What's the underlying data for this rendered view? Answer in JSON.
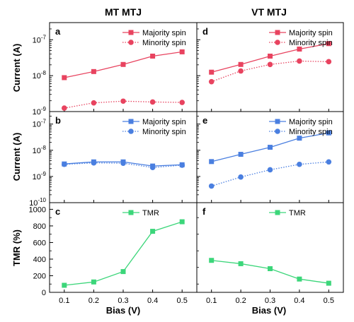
{
  "colors": {
    "majority_red": "#e8435f",
    "majority_blue": "#4a7fe0",
    "tmr_green": "#3cd67a"
  },
  "columns": [
    "MT MTJ",
    "VT MTJ"
  ],
  "chart_data": [
    {
      "id": "a",
      "type": "line",
      "column_title": "MT MTJ",
      "panel_label": "a",
      "ylabel": "Current (A)",
      "xlabel": "",
      "yscale": "log",
      "ylim": [
        1e-09,
        3e-07
      ],
      "yticks": [
        {
          "value": 1e-09,
          "mantissa": "10",
          "exp": "-9"
        },
        {
          "value": 1e-08,
          "mantissa": "10",
          "exp": "-8"
        },
        {
          "value": 1e-07,
          "mantissa": "10",
          "exp": "-7"
        }
      ],
      "x": [
        0.1,
        0.2,
        0.3,
        0.4,
        0.5
      ],
      "legend_position": "top-right",
      "series": [
        {
          "name": "Majority spin",
          "color": "#e8435f",
          "marker": "square",
          "line": "solid",
          "values": [
            8.8e-09,
            1.3e-08,
            2.05e-08,
            3.5e-08,
            4.6e-08
          ]
        },
        {
          "name": "Minority spin",
          "color": "#e8435f",
          "marker": "circle",
          "line": "dotted",
          "values": [
            1.25e-09,
            1.75e-09,
            1.95e-09,
            1.85e-09,
            1.8e-09
          ]
        }
      ]
    },
    {
      "id": "d",
      "type": "line",
      "column_title": "VT MTJ",
      "panel_label": "d",
      "ylabel": "",
      "xlabel": "",
      "yscale": "log",
      "ylim": [
        1e-09,
        3e-07
      ],
      "yticks": [],
      "x": [
        0.1,
        0.2,
        0.3,
        0.4,
        0.5
      ],
      "legend_position": "top-right",
      "series": [
        {
          "name": "Majority spin",
          "color": "#e8435f",
          "marker": "square",
          "line": "solid",
          "values": [
            1.25e-08,
            2.05e-08,
            3.5e-08,
            5.5e-08,
            7.8e-08
          ]
        },
        {
          "name": "Minority spin",
          "color": "#e8435f",
          "marker": "circle",
          "line": "dotted",
          "values": [
            6.8e-09,
            1.35e-08,
            2.05e-08,
            2.55e-08,
            2.45e-08
          ]
        }
      ]
    },
    {
      "id": "b",
      "type": "line",
      "panel_label": "b",
      "ylabel": "Current (A)",
      "xlabel": "",
      "yscale": "log",
      "ylim": [
        1e-10,
        3e-07
      ],
      "yticks": [
        {
          "value": 1e-10,
          "mantissa": "10",
          "exp": "-10"
        },
        {
          "value": 1e-09,
          "mantissa": "10",
          "exp": "-9"
        },
        {
          "value": 1e-08,
          "mantissa": "10",
          "exp": "-8"
        },
        {
          "value": 1e-07,
          "mantissa": "10",
          "exp": "-7"
        }
      ],
      "x": [
        0.1,
        0.2,
        0.3,
        0.4,
        0.5
      ],
      "legend_position": "top-right",
      "series": [
        {
          "name": "Majority spin",
          "color": "#4a7fe0",
          "marker": "square",
          "line": "solid",
          "values": [
            3e-09,
            3.6e-09,
            3.6e-09,
            2.5e-09,
            2.8e-09
          ]
        },
        {
          "name": "Minority spin",
          "color": "#4a7fe0",
          "marker": "circle",
          "line": "dotted",
          "values": [
            2.9e-09,
            3.3e-09,
            3.2e-09,
            2.2e-09,
            2.7e-09
          ]
        }
      ]
    },
    {
      "id": "e",
      "type": "line",
      "panel_label": "e",
      "ylabel": "",
      "xlabel": "",
      "yscale": "log",
      "ylim": [
        1e-10,
        3e-07
      ],
      "yticks": [],
      "x": [
        0.1,
        0.2,
        0.3,
        0.4,
        0.5
      ],
      "legend_position": "top-right",
      "series": [
        {
          "name": "Majority spin",
          "color": "#4a7fe0",
          "marker": "square",
          "line": "solid",
          "values": [
            3.7e-09,
            7e-09,
            1.3e-08,
            2.9e-08,
            4.6e-08
          ]
        },
        {
          "name": "Minority spin",
          "color": "#4a7fe0",
          "marker": "circle",
          "line": "dotted",
          "values": [
            4.3e-10,
            9.5e-10,
            1.8e-09,
            2.9e-09,
            3.6e-09
          ]
        }
      ]
    },
    {
      "id": "c",
      "type": "line",
      "panel_label": "c",
      "ylabel": "TMR (%)",
      "xlabel": "Bias (V)",
      "yscale": "linear",
      "ylim": [
        0,
        1080
      ],
      "yticks": [
        {
          "value": 0,
          "text": "0"
        },
        {
          "value": 200,
          "text": "200"
        },
        {
          "value": 400,
          "text": "400"
        },
        {
          "value": 600,
          "text": "600"
        },
        {
          "value": 800,
          "text": "800"
        },
        {
          "value": 1000,
          "text": "1000"
        }
      ],
      "x": [
        0.1,
        0.2,
        0.3,
        0.4,
        0.5
      ],
      "xticks": [
        "0.1",
        "0.2",
        "0.3",
        "0.4",
        "0.5"
      ],
      "legend_position": "top-right",
      "series": [
        {
          "name": "TMR",
          "color": "#3cd67a",
          "marker": "square",
          "line": "solid",
          "values": [
            85,
            125,
            250,
            735,
            850
          ]
        }
      ]
    },
    {
      "id": "f",
      "type": "line",
      "panel_label": "f",
      "ylabel": "",
      "xlabel": "Bias (V)",
      "yscale": "linear",
      "ylim": [
        0,
        1080
      ],
      "yticks": [],
      "x": [
        0.1,
        0.2,
        0.3,
        0.4,
        0.5
      ],
      "xticks": [
        "0.1",
        "0.2",
        "0.3",
        "0.4",
        "0.5"
      ],
      "legend_position": "top-right",
      "series": [
        {
          "name": "TMR",
          "color": "#3cd67a",
          "marker": "square",
          "line": "solid",
          "values": [
            385,
            345,
            285,
            160,
            110
          ]
        }
      ]
    }
  ]
}
